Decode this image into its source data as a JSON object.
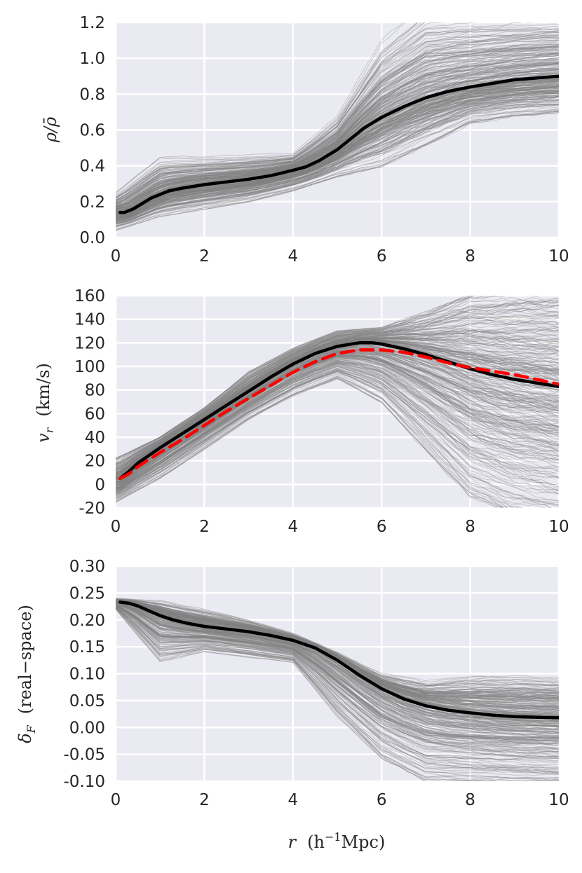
{
  "style": {
    "panel_bg": "#EAEAF2",
    "grid": "#FFFFFF",
    "ensemble_color": "#808080",
    "mean_color": "#000000",
    "model_color": "#FF0000"
  },
  "chart_data": [
    {
      "type": "line",
      "xlabel": "",
      "ylabel_parts": [
        "ρ/",
        "ρ̄"
      ],
      "xlim": [
        0,
        10
      ],
      "ylim": [
        0,
        1.2
      ],
      "xticks": [
        "0",
        "2",
        "4",
        "6",
        "8",
        "10"
      ],
      "yticks": [
        "0.0",
        "0.2",
        "0.4",
        "0.6",
        "0.8",
        "1.0",
        "1.2"
      ],
      "grid": true,
      "ensemble": {
        "count": 300,
        "spread_low": [
          0.04,
          0.12,
          0.16,
          0.2,
          0.26,
          0.34,
          0.4,
          0.52,
          0.64,
          0.68,
          0.7
        ],
        "spread_high": [
          0.25,
          0.45,
          0.45,
          0.46,
          0.47,
          0.68,
          1.1,
          1.3,
          1.3,
          1.3,
          1.3
        ]
      },
      "series": [
        {
          "style": "solid",
          "x": [
            0.1,
            0.2,
            0.4,
            0.6,
            0.8,
            1.0,
            1.2,
            1.5,
            2.0,
            2.5,
            3.0,
            3.5,
            4.0,
            4.3,
            4.6,
            5.0,
            5.3,
            5.6,
            6.0,
            6.5,
            7.0,
            7.5,
            8.0,
            8.5,
            9.0,
            9.5,
            10.0
          ],
          "y": [
            0.14,
            0.14,
            0.16,
            0.19,
            0.22,
            0.24,
            0.26,
            0.275,
            0.295,
            0.31,
            0.325,
            0.345,
            0.375,
            0.395,
            0.43,
            0.49,
            0.55,
            0.61,
            0.67,
            0.73,
            0.78,
            0.815,
            0.84,
            0.86,
            0.88,
            0.89,
            0.9
          ]
        }
      ]
    },
    {
      "type": "line",
      "xlabel": "",
      "ylabel_parts": [
        "v",
        "r",
        "(km/s)"
      ],
      "xlim": [
        0,
        10
      ],
      "ylim": [
        -20,
        160
      ],
      "xticks": [
        "0",
        "2",
        "4",
        "6",
        "8",
        "10"
      ],
      "yticks": [
        "-20",
        "0",
        "20",
        "40",
        "60",
        "80",
        "100",
        "120",
        "140",
        "160"
      ],
      "grid": true,
      "ensemble": {
        "count": 300,
        "spread_low": [
          -15,
          5,
          30,
          55,
          75,
          90,
          70,
          30,
          -10,
          -25,
          -30
        ],
        "spread_high": [
          22,
          40,
          65,
          95,
          115,
          130,
          133,
          145,
          160,
          165,
          165
        ]
      },
      "series": [
        {
          "style": "solid",
          "x": [
            0.1,
            0.3,
            0.5,
            1.0,
            1.5,
            2.0,
            2.5,
            3.0,
            3.5,
            4.0,
            4.5,
            5.0,
            5.5,
            5.8,
            6.0,
            6.5,
            7.0,
            7.5,
            8.0,
            8.5,
            9.0,
            9.5,
            10.0
          ],
          "y": [
            5,
            11,
            18,
            31,
            43,
            55,
            67,
            79,
            91,
            102,
            111,
            117,
            120,
            120,
            119,
            115,
            110,
            104,
            98,
            93,
            89,
            86,
            83
          ]
        },
        {
          "style": "dashed",
          "x": [
            0.1,
            0.3,
            0.5,
            1.0,
            1.5,
            2.0,
            2.5,
            3.0,
            3.5,
            4.0,
            4.5,
            5.0,
            5.5,
            6.0,
            6.5,
            7.0,
            7.5,
            8.0,
            8.5,
            9.0,
            9.5,
            10.0
          ],
          "y": [
            5,
            9,
            15,
            27,
            38,
            50,
            62,
            73,
            84,
            95,
            104,
            111,
            114,
            114,
            112,
            108,
            103,
            99,
            96,
            93,
            89,
            85
          ]
        }
      ]
    },
    {
      "type": "line",
      "xlabel_parts": [
        "r",
        "(h",
        "−1",
        "Mpc)"
      ],
      "ylabel_parts": [
        "δ",
        "F",
        "(real−space)"
      ],
      "xlim": [
        0,
        10
      ],
      "ylim": [
        -0.1,
        0.3
      ],
      "xticks": [
        "0",
        "2",
        "4",
        "6",
        "8",
        "10"
      ],
      "yticks": [
        "-0.10",
        "-0.05",
        "0.00",
        "0.05",
        "0.10",
        "0.15",
        "0.20",
        "0.25",
        "0.30"
      ],
      "grid": true,
      "ensemble": {
        "count": 300,
        "spread_low": [
          0.22,
          0.12,
          0.14,
          0.13,
          0.12,
          0.02,
          -0.06,
          -0.1,
          -0.1,
          -0.1,
          -0.1
        ],
        "spread_high": [
          0.24,
          0.235,
          0.22,
          0.2,
          0.175,
          0.14,
          0.1,
          0.085,
          0.095,
          0.095,
          0.09
        ]
      },
      "series": [
        {
          "style": "solid",
          "x": [
            0.1,
            0.3,
            0.5,
            0.8,
            1.0,
            1.3,
            1.6,
            2.0,
            2.5,
            3.0,
            3.5,
            4.0,
            4.5,
            5.0,
            5.5,
            6.0,
            6.5,
            7.0,
            7.5,
            8.0,
            8.5,
            9.0,
            9.5,
            10.0
          ],
          "y": [
            0.233,
            0.231,
            0.226,
            0.215,
            0.208,
            0.2,
            0.194,
            0.188,
            0.183,
            0.178,
            0.171,
            0.162,
            0.148,
            0.125,
            0.097,
            0.072,
            0.053,
            0.04,
            0.032,
            0.027,
            0.023,
            0.02,
            0.019,
            0.018
          ]
        }
      ]
    }
  ]
}
